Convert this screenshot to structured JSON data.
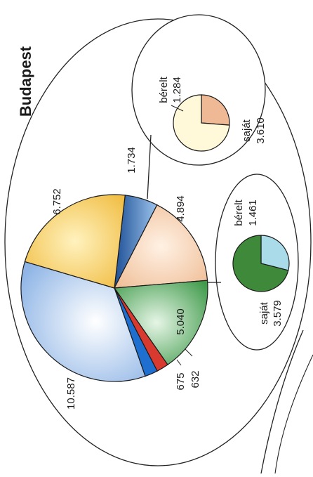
{
  "chart_data": [
    {
      "type": "pie",
      "title": "Budapest",
      "slices": [
        {
          "label": "1.734",
          "value": 1734,
          "color": "#3a6fb5"
        },
        {
          "label": "4.894",
          "value": 4894,
          "color": "#f3c9a6"
        },
        {
          "label": "5.040",
          "value": 5040,
          "color": "#5aaa63"
        },
        {
          "label": "632",
          "value": 632,
          "color": "#d83a30"
        },
        {
          "label": "675",
          "value": 675,
          "color": "#1f6fd0"
        },
        {
          "label": "10.587",
          "value": 10587,
          "color": "#a9c9ee"
        },
        {
          "label": "6.752",
          "value": 6752,
          "color": "#f2c45a"
        }
      ]
    },
    {
      "type": "pie",
      "slices": [
        {
          "label": "bérelt",
          "value_label": "1.284",
          "value": 1284,
          "color": "#efb995"
        },
        {
          "label": "saját",
          "value_label": "3.610",
          "value": 3610,
          "color": "#fdf6cf"
        }
      ]
    },
    {
      "type": "pie",
      "slices": [
        {
          "label": "bérelt",
          "value_label": "1.461",
          "value": 1461,
          "color": "#a9dce8"
        },
        {
          "label": "saját",
          "value_label": "3.579",
          "value": 3579,
          "color": "#3f8a3a"
        }
      ]
    }
  ]
}
